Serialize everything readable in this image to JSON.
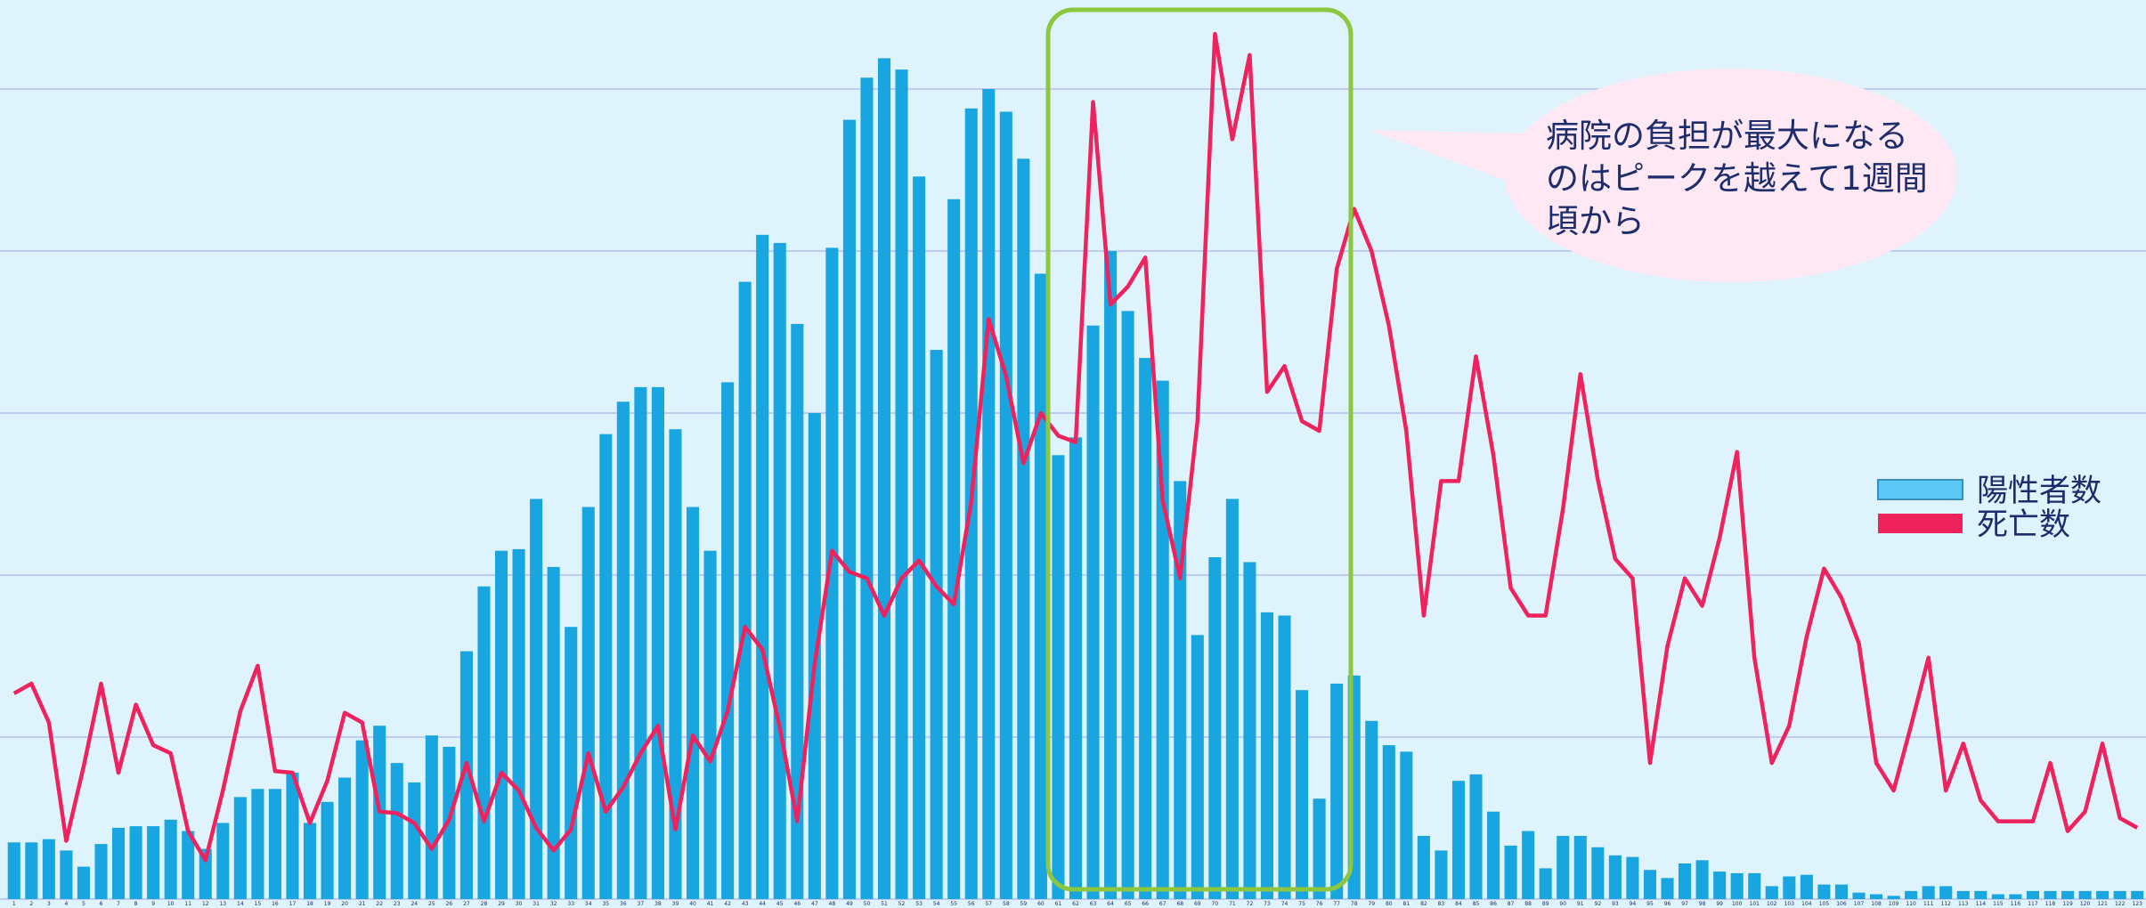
{
  "chart_data": {
    "type": "combo",
    "categories": [
      "1",
      "2",
      "3",
      "4",
      "5",
      "6",
      "7",
      "8",
      "9",
      "10",
      "11",
      "12",
      "13",
      "14",
      "15",
      "16",
      "17",
      "18",
      "19",
      "20",
      "21",
      "22",
      "23",
      "24",
      "25",
      "26",
      "27",
      "28",
      "29",
      "30",
      "31",
      "32",
      "33",
      "34",
      "35",
      "36",
      "37",
      "38",
      "39",
      "40",
      "41",
      "42",
      "43",
      "44",
      "45",
      "46",
      "47",
      "48",
      "49",
      "50",
      "51",
      "52",
      "53",
      "54",
      "55",
      "56",
      "57",
      "58",
      "59",
      "60",
      "61",
      "62",
      "63",
      "64",
      "65",
      "66",
      "67",
      "68",
      "69",
      "70",
      "71",
      "72",
      "73",
      "74",
      "75",
      "76",
      "77",
      "78",
      "79",
      "80",
      "81",
      "82",
      "83",
      "84",
      "85",
      "86",
      "87",
      "88",
      "89",
      "90",
      "91",
      "92",
      "93",
      "94",
      "95",
      "96",
      "97",
      "98",
      "99",
      "100",
      "101",
      "102",
      "103",
      "104",
      "105",
      "106",
      "107",
      "108",
      "109",
      "110",
      "111",
      "112",
      "113",
      "114",
      "115",
      "116",
      "117",
      "118",
      "119",
      "120",
      "121",
      "122",
      "123"
    ],
    "series": [
      {
        "name": "陽性者数",
        "type": "bar",
        "color": "#19a6e0",
        "values": [
          3.5,
          3.5,
          3.7,
          3.0,
          2.0,
          3.4,
          4.4,
          4.5,
          4.5,
          4.9,
          4.2,
          3.1,
          4.7,
          6.3,
          6.8,
          6.8,
          7.8,
          4.7,
          6.0,
          7.5,
          9.8,
          10.7,
          8.4,
          7.2,
          10.1,
          9.4,
          15.3,
          19.3,
          21.5,
          21.6,
          24.7,
          20.5,
          16.8,
          24.2,
          28.7,
          30.7,
          31.6,
          31.6,
          29.0,
          24.2,
          21.5,
          31.9,
          38.1,
          41.0,
          40.5,
          35.5,
          30.0,
          40.2,
          48.1,
          50.7,
          51.9,
          51.2,
          44.6,
          33.9,
          43.2,
          48.8,
          50.0,
          48.6,
          45.7,
          38.6,
          27.4,
          28.5,
          35.4,
          40.0,
          36.3,
          33.4,
          32.0,
          25.8,
          16.3,
          21.1,
          24.7,
          20.8,
          17.7,
          17.5,
          12.9,
          6.2,
          13.3,
          13.8,
          11.0,
          9.5,
          9.1,
          3.9,
          3.0,
          7.3,
          7.7,
          5.4,
          3.3,
          4.2,
          1.9,
          3.9,
          3.9,
          3.2,
          2.7,
          2.6,
          1.8,
          1.3,
          2.2,
          2.4,
          1.7,
          1.6,
          1.6,
          0.8,
          1.4,
          1.5,
          0.9,
          0.9,
          0.4,
          0.3,
          0.2,
          0.5,
          0.8,
          0.8,
          0.5,
          0.5,
          0.3,
          0.3,
          0.5,
          0.5,
          0.5,
          0.5,
          0.5,
          0.5,
          0.5
        ]
      },
      {
        "name": "死亡数",
        "type": "line",
        "color": "#f0225e",
        "values": [
          12.7,
          13.3,
          10.9,
          3.6,
          8.2,
          13.3,
          7.8,
          12.0,
          9.5,
          9.0,
          4.2,
          2.4,
          6.7,
          11.6,
          14.4,
          7.9,
          7.8,
          4.7,
          7.3,
          11.5,
          10.9,
          5.4,
          5.3,
          4.7,
          3.1,
          4.9,
          8.4,
          4.8,
          7.8,
          6.7,
          4.4,
          3.0,
          4.3,
          9.0,
          5.4,
          6.9,
          9.0,
          10.7,
          4.3,
          10.1,
          8.5,
          11.6,
          16.8,
          15.4,
          10.6,
          4.8,
          14.5,
          21.5,
          20.2,
          19.8,
          17.5,
          19.8,
          20.9,
          19.3,
          18.2,
          24.5,
          35.8,
          32.3,
          26.9,
          30.0,
          28.6,
          28.2,
          49.2,
          36.7,
          37.8,
          39.6,
          24.6,
          19.8,
          29.5,
          53.4,
          46.9,
          52.1,
          31.3,
          32.9,
          29.5,
          28.9,
          38.9,
          42.6,
          40.0,
          35.4,
          28.9,
          17.5,
          25.8,
          25.8,
          33.5,
          27.4,
          19.2,
          17.5,
          17.5,
          24.1,
          32.4,
          25.9,
          21.0,
          19.8,
          8.4,
          15.6,
          19.8,
          18.1,
          22.3,
          27.6,
          14.9,
          8.4,
          10.7,
          16.2,
          20.4,
          18.6,
          15.8,
          8.4,
          6.7,
          10.7,
          14.9,
          6.7,
          9.6,
          6.1,
          4.8,
          4.8,
          4.8,
          8.4,
          4.2,
          5.4,
          9.6,
          5.0,
          4.4
        ]
      }
    ],
    "ylim": [
      0,
      55
    ],
    "yticks": [
      0,
      10,
      20,
      30,
      40,
      50
    ],
    "grid": true,
    "annotation_lines": [
      "病院の負担が最大になる",
      "のはピークを越えて1週間",
      "頃から"
    ]
  }
}
